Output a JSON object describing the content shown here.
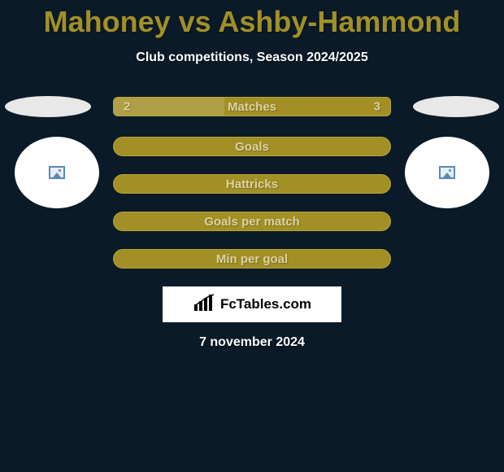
{
  "title": "Mahoney vs Ashby-Hammond",
  "subtitle": "Club competitions, Season 2024/2025",
  "date": "7 november 2024",
  "colors": {
    "background": "#0a1a28",
    "accent": "#a29027",
    "accent_border": "#b4a333",
    "pill_text": "#dcd3a0",
    "white": "#ffffff",
    "badge_bg": "#ffffff"
  },
  "matches_bar": {
    "label": "Matches",
    "left_value": "2",
    "right_value": "3",
    "left_fill_pct": 40
  },
  "stats": [
    {
      "label": "Goals"
    },
    {
      "label": "Hattricks"
    },
    {
      "label": "Goals per match"
    },
    {
      "label": "Min per goal"
    }
  ],
  "players": {
    "left": {
      "photo": null
    },
    "right": {
      "photo": null
    }
  },
  "badge": {
    "text": "FcTables.com"
  }
}
